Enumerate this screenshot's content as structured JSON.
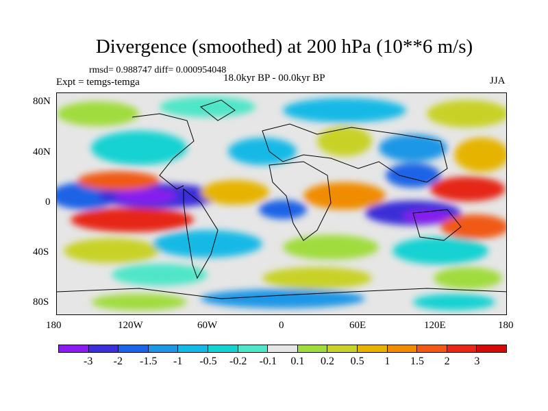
{
  "title": "Divergence (smoothed) at 200 hPa (10**6 m/s)",
  "stats": "rmsd= 0.988747 diff= 0.000954048",
  "experiment": "Expt = temgs-temga",
  "period": "18.0kyr BP - 00.0kyr BP",
  "season": "JJA",
  "y_axis_labels": [
    "80N",
    "40N",
    "0",
    "40S",
    "80S"
  ],
  "x_axis_labels": [
    "180",
    "120W",
    "60W",
    "0",
    "60E",
    "120E",
    "180"
  ],
  "colorbar": {
    "labels": [
      "-3",
      "-2",
      "-1.5",
      "-1",
      "-0.5",
      "-0.2",
      "-0.1",
      "0.1",
      "0.2",
      "0.5",
      "1",
      "1.5",
      "2",
      "3"
    ],
    "colors": [
      "#8a1cf0",
      "#3a2fd8",
      "#1e64e6",
      "#1e96e6",
      "#14b9e6",
      "#14d2d2",
      "#50e6c8",
      "#e6e6e6",
      "#a0dc3c",
      "#c8d228",
      "#e6b400",
      "#f08c00",
      "#f05a14",
      "#e62814",
      "#d20a0a"
    ]
  },
  "map_colors": {
    "ocean_neutral": "#e6e6e6",
    "coast": "#000000"
  }
}
